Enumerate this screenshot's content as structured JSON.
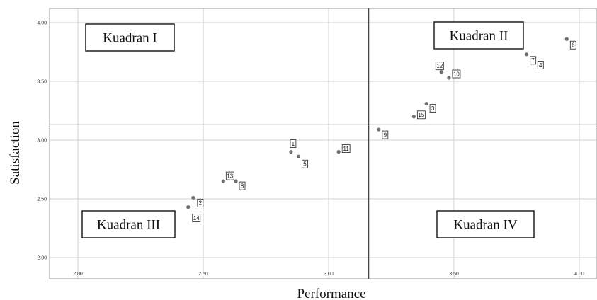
{
  "chart_data": {
    "type": "scatter",
    "title": "",
    "xlabel": "Performance",
    "ylabel": "Satisfaction",
    "xlim": [
      1.9,
      4.04
    ],
    "ylim": [
      1.87,
      4.07
    ],
    "x_ticks": [
      {
        "value": 2.0,
        "label": "2.00"
      },
      {
        "value": 2.5,
        "label": "2.50"
      },
      {
        "value": 3.0,
        "label": "3.00"
      },
      {
        "value": 3.5,
        "label": "3.50"
      },
      {
        "value": 4.0,
        "label": "4.00"
      }
    ],
    "y_ticks": [
      {
        "value": 2.0,
        "label": "2.00"
      },
      {
        "value": 2.5,
        "label": "2.50"
      },
      {
        "value": 3.0,
        "label": "3.00"
      },
      {
        "value": 3.5,
        "label": "3.50"
      },
      {
        "value": 4.0,
        "label": "4.00"
      }
    ],
    "grid": true,
    "reference_lines": {
      "x": 3.16,
      "y": 3.13
    },
    "quadrants": [
      {
        "label": "Kuadran I",
        "position": "top-left"
      },
      {
        "label": "Kuadran II",
        "position": "top-right"
      },
      {
        "label": "Kuadran III",
        "position": "bottom-left"
      },
      {
        "label": "Kuadran IV",
        "position": "bottom-right"
      }
    ],
    "points": [
      {
        "id": "1",
        "x": 2.85,
        "y": 2.9
      },
      {
        "id": "2",
        "x": 2.46,
        "y": 2.51
      },
      {
        "id": "3",
        "x": 3.39,
        "y": 3.31
      },
      {
        "id": "4",
        "x": 3.82,
        "y": 3.69
      },
      {
        "id": "5",
        "x": 2.88,
        "y": 2.86
      },
      {
        "id": "6",
        "x": 3.95,
        "y": 3.86
      },
      {
        "id": "7",
        "x": 3.79,
        "y": 3.73
      },
      {
        "id": "8",
        "x": 2.63,
        "y": 2.65
      },
      {
        "id": "9",
        "x": 3.2,
        "y": 3.09
      },
      {
        "id": "10",
        "x": 3.48,
        "y": 3.53
      },
      {
        "id": "11",
        "x": 3.04,
        "y": 2.9
      },
      {
        "id": "12",
        "x": 3.45,
        "y": 3.58
      },
      {
        "id": "13",
        "x": 2.58,
        "y": 2.65
      },
      {
        "id": "14",
        "x": 2.44,
        "y": 2.43
      },
      {
        "id": "15",
        "x": 3.34,
        "y": 3.2
      }
    ],
    "colors": {
      "point": "#707070",
      "grid": "#d2d2d2",
      "reference_line": "#3c3c3c",
      "frame": "#9a9a9a"
    }
  }
}
